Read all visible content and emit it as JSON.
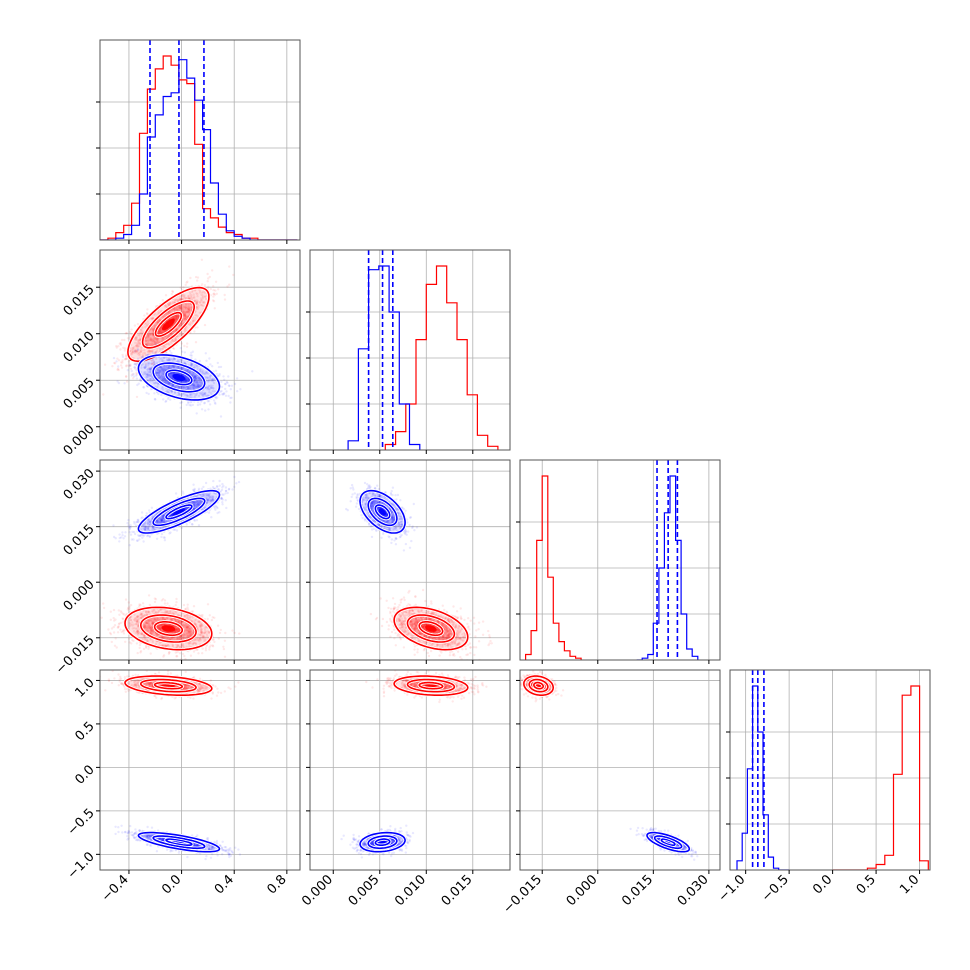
{
  "chart_data": {
    "type": "corner",
    "grid": true,
    "params": [
      {
        "range": [
          -0.62,
          0.9
        ],
        "ticks": [
          -0.4,
          0.0,
          0.4,
          0.8
        ],
        "tick_labels": [
          "−0.4",
          "0.0",
          "0.4",
          "0.8"
        ]
      },
      {
        "range": [
          -0.0025,
          0.019
        ],
        "ticks": [
          0.0,
          0.005,
          0.01,
          0.015
        ],
        "tick_labels": [
          "0.000",
          "0.005",
          "0.010",
          "0.015"
        ]
      },
      {
        "range": [
          -0.021,
          0.033
        ],
        "ticks": [
          -0.015,
          0.0,
          0.015,
          0.03
        ],
        "tick_labels": [
          "−0.015",
          "0.000",
          "0.015",
          "0.030"
        ]
      },
      {
        "range": [
          -1.18,
          1.12
        ],
        "ticks": [
          -1.0,
          -0.5,
          0.0,
          0.5,
          1.0
        ],
        "tick_labels": [
          "−1.0",
          "−0.5",
          "0.0",
          "0.5",
          "1.0"
        ]
      }
    ],
    "series": [
      {
        "color": "#ff0000",
        "quantiles": null,
        "hists": [
          {
            "edges": [
              -0.62,
              -0.56,
              -0.5,
              -0.44,
              -0.38,
              -0.32,
              -0.26,
              -0.2,
              -0.14,
              -0.08,
              -0.02,
              0.04,
              0.1,
              0.16,
              0.22,
              0.28,
              0.34,
              0.4,
              0.46,
              0.52,
              0.58,
              0.64,
              0.7,
              0.76,
              0.82,
              0.88
            ],
            "counts": [
              0,
              0.01,
              0.04,
              0.08,
              0.2,
              0.58,
              0.82,
              0.93,
              1.0,
              0.95,
              0.87,
              0.85,
              0.52,
              0.17,
              0.12,
              0.07,
              0.04,
              0.03,
              0.01,
              0.01,
              0.0,
              0.0,
              0.0,
              0.0,
              0.0
            ]
          },
          {
            "edges": [
              0.0056,
              0.0067,
              0.0078,
              0.0089,
              0.01,
              0.0111,
              0.0122,
              0.0133,
              0.0144,
              0.0155,
              0.0166,
              0.0177
            ],
            "counts": [
              0.03,
              0.1,
              0.25,
              0.6,
              0.9,
              1.0,
              0.8,
              0.6,
              0.3,
              0.08,
              0.02
            ]
          },
          {
            "edges": [
              -0.0195,
              -0.018,
              -0.0165,
              -0.015,
              -0.0135,
              -0.012,
              -0.0105,
              -0.009,
              -0.0075,
              -0.006,
              -0.0045
            ],
            "counts": [
              0.03,
              0.16,
              0.65,
              1.0,
              0.45,
              0.2,
              0.1,
              0.05,
              0.02,
              0.01
            ]
          },
          {
            "edges": [
              0.0,
              0.1,
              0.2,
              0.3,
              0.4,
              0.5,
              0.6,
              0.7,
              0.8,
              0.9,
              1.0,
              1.1
            ],
            "counts": [
              0.0,
              0.0,
              0.0,
              0.0,
              0.01,
              0.03,
              0.08,
              0.52,
              0.95,
              1.0,
              0.05
            ]
          }
        ],
        "pairs": [
          {
            "x": 0,
            "y": 1,
            "center": [
              -0.1,
              0.011
            ],
            "sigma": [
              0.14,
              0.0018
            ],
            "rho": 0.75,
            "levels": [
              0.7,
              1.4,
              2.2
            ],
            "ncloud": 1400
          },
          {
            "x": 0,
            "y": 2,
            "center": [
              -0.1,
              -0.0125
            ],
            "sigma": [
              0.15,
              0.0026
            ],
            "rho": -0.25,
            "levels": [
              0.7,
              1.4,
              2.2
            ],
            "ncloud": 1400
          },
          {
            "x": 0,
            "y": 3,
            "center": [
              -0.1,
              0.94
            ],
            "sigma": [
              0.15,
              0.05
            ],
            "rho": -0.3,
            "levels": [
              0.7,
              1.4,
              2.2
            ],
            "ncloud": 1000
          },
          {
            "x": 1,
            "y": 2,
            "center": [
              0.0105,
              -0.0125
            ],
            "sigma": [
              0.0018,
              0.0026
            ],
            "rho": -0.4,
            "levels": [
              0.7,
              1.4,
              2.2
            ],
            "ncloud": 1400
          },
          {
            "x": 1,
            "y": 3,
            "center": [
              0.0105,
              0.94
            ],
            "sigma": [
              0.0018,
              0.05
            ],
            "rho": -0.2,
            "levels": [
              0.7,
              1.4,
              2.2
            ],
            "ncloud": 1000
          },
          {
            "x": 2,
            "y": 3,
            "center": [
              -0.016,
              0.94
            ],
            "sigma": [
              0.0018,
              0.05
            ],
            "rho": -0.2,
            "levels": [
              0.7,
              1.4,
              2.2
            ],
            "ncloud": 800
          }
        ]
      },
      {
        "color": "#0000ff",
        "quantiles": [
          [
            -0.24,
            -0.02,
            0.17
          ],
          [
            0.0038,
            0.0053,
            0.0064
          ],
          [
            0.016,
            0.019,
            0.0215
          ],
          [
            -0.92,
            -0.86,
            -0.79
          ]
        ],
        "hists": [
          {
            "edges": [
              -0.62,
              -0.56,
              -0.5,
              -0.44,
              -0.38,
              -0.32,
              -0.26,
              -0.2,
              -0.14,
              -0.08,
              -0.02,
              0.04,
              0.1,
              0.16,
              0.22,
              0.28,
              0.34,
              0.4,
              0.46,
              0.52,
              0.58,
              0.64,
              0.7,
              0.76,
              0.82,
              0.88
            ],
            "counts": [
              0,
              0.0,
              0.01,
              0.03,
              0.08,
              0.25,
              0.56,
              0.68,
              0.78,
              0.8,
              0.98,
              0.88,
              0.76,
              0.6,
              0.31,
              0.14,
              0.05,
              0.02,
              0.01,
              0.0,
              0.0,
              0.0,
              0.0,
              0.0,
              0.0
            ]
          },
          {
            "edges": [
              0.0016,
              0.0027,
              0.0038,
              0.0049,
              0.006,
              0.0071,
              0.0082,
              0.0093
            ],
            "counts": [
              0.05,
              0.55,
              0.98,
              1.0,
              0.75,
              0.25,
              0.03
            ]
          },
          {
            "edges": [
              0.0105,
              0.012,
              0.0135,
              0.015,
              0.0165,
              0.018,
              0.0195,
              0.021,
              0.0225,
              0.024,
              0.0255,
              0.027
            ],
            "counts": [
              0.0,
              0.01,
              0.03,
              0.2,
              0.5,
              0.8,
              1.0,
              0.65,
              0.25,
              0.06,
              0.02
            ]
          },
          {
            "edges": [
              -1.1,
              -1.04,
              -0.98,
              -0.92,
              -0.86,
              -0.8,
              -0.74,
              -0.68,
              -0.62,
              -0.56,
              -0.5
            ],
            "counts": [
              0.05,
              0.2,
              0.55,
              1.0,
              0.75,
              0.3,
              0.07,
              0.01,
              0.0,
              0.0
            ]
          }
        ],
        "pairs": [
          {
            "x": 0,
            "y": 1,
            "center": [
              -0.02,
              0.0053
            ],
            "sigma": [
              0.14,
              0.0011
            ],
            "rho": -0.4,
            "levels": [
              0.7,
              1.4,
              2.2
            ],
            "ncloud": 1400
          },
          {
            "x": 0,
            "y": 2,
            "center": [
              -0.02,
              0.019
            ],
            "sigma": [
              0.14,
              0.0026
            ],
            "rho": 0.8,
            "levels": [
              0.7,
              1.4,
              2.2
            ],
            "ncloud": 1400
          },
          {
            "x": 0,
            "y": 3,
            "center": [
              -0.02,
              -0.86
            ],
            "sigma": [
              0.14,
              0.05
            ],
            "rho": -0.7,
            "levels": [
              0.7,
              1.4,
              2.2
            ],
            "ncloud": 1200
          },
          {
            "x": 1,
            "y": 2,
            "center": [
              0.0053,
              0.019
            ],
            "sigma": [
              0.0011,
              0.0026
            ],
            "rho": -0.5,
            "levels": [
              0.7,
              1.4,
              2.2
            ],
            "ncloud": 1100
          },
          {
            "x": 1,
            "y": 3,
            "center": [
              0.0053,
              -0.86
            ],
            "sigma": [
              0.0011,
              0.05
            ],
            "rho": 0.2,
            "levels": [
              0.7,
              1.4,
              2.2
            ],
            "ncloud": 1000
          },
          {
            "x": 2,
            "y": 3,
            "center": [
              0.019,
              -0.86
            ],
            "sigma": [
              0.0026,
              0.05
            ],
            "rho": -0.7,
            "levels": [
              0.7,
              1.4,
              2.2
            ],
            "ncloud": 900
          }
        ]
      }
    ]
  }
}
